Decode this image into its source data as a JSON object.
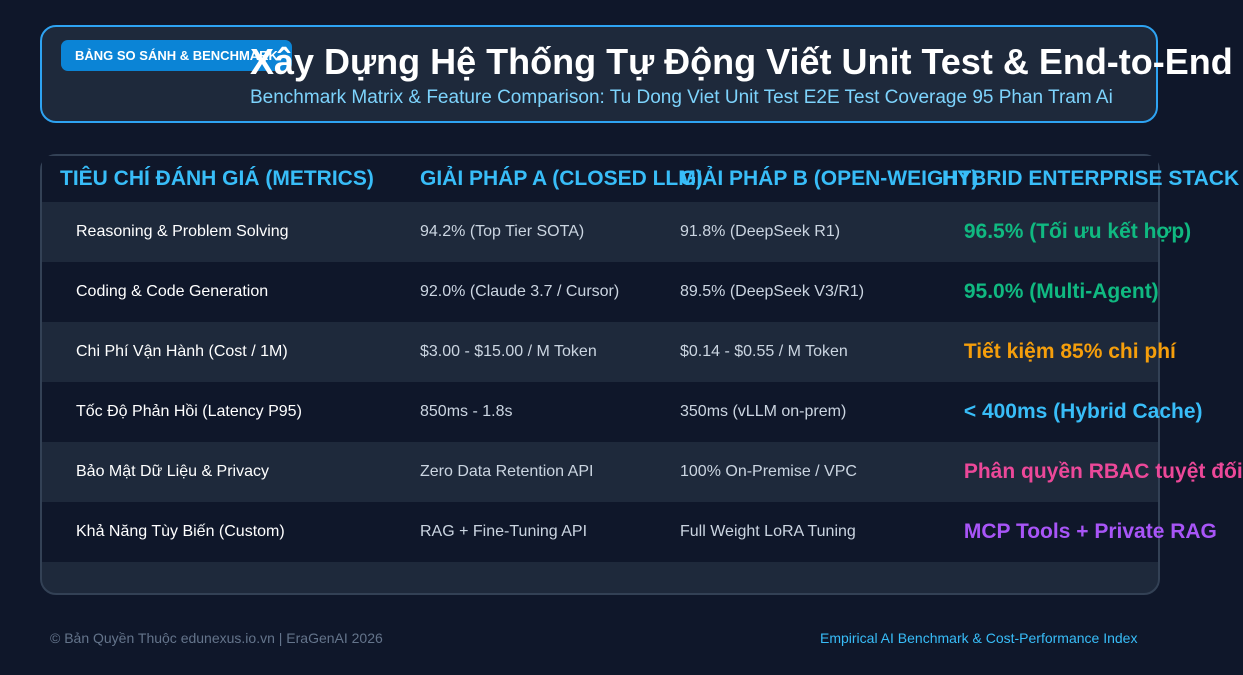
{
  "header": {
    "badge": "BẢNG SO SÁNH & BENCHMARK",
    "title": "Xây Dựng Hệ Thống Tự Động Viết Unit Test & End-to-End",
    "subtitle": "Benchmark Matrix & Feature Comparison: Tu Dong Viet Unit Test E2E Test Coverage 95 Phan Tram Ai"
  },
  "table": {
    "headers": [
      "TIÊU CHÍ ĐÁNH GIÁ (METRICS)",
      "GIẢI PHÁP A (CLOSED LLM)",
      "GIẢI PHÁP B (OPEN-WEIGHT)",
      "HYBRID ENTERPRISE STACK"
    ],
    "rows": [
      {
        "icon": "",
        "metric": "Reasoning & Problem Solving",
        "a": "94.2% (Top Tier SOTA)",
        "b": "91.8% (DeepSeek R1)",
        "hybrid": "96.5% (Tối ưu kết hợp)",
        "hybrid_color": "#10b981"
      },
      {
        "icon": "",
        "metric": "Coding & Code Generation",
        "a": "92.0% (Claude 3.7 / Cursor)",
        "b": "89.5% (DeepSeek V3/R1)",
        "hybrid": "95.0% (Multi-Agent)",
        "hybrid_color": "#10b981"
      },
      {
        "icon": "",
        "metric": "Chi Phí Vận Hành (Cost / 1M)",
        "a": "$3.00 - $15.00 / M Token",
        "b": "$0.14 - $0.55 / M Token",
        "hybrid": "Tiết kiệm 85% chi phí",
        "hybrid_color": "#f59e0b"
      },
      {
        "icon": "",
        "metric": "Tốc Độ Phản Hồi (Latency P95)",
        "a": "850ms - 1.8s",
        "b": "350ms (vLLM on-prem)",
        "hybrid": "< 400ms (Hybrid Cache)",
        "hybrid_color": "#38bdf8"
      },
      {
        "icon": "",
        "metric": "Bảo Mật Dữ Liệu & Privacy",
        "a": "Zero Data Retention API",
        "b": "100% On-Premise / VPC",
        "hybrid": "Phân quyền RBAC tuyệt đối",
        "hybrid_color": "#ec4899"
      },
      {
        "icon": "",
        "metric": "Khả Năng Tùy Biến (Custom)",
        "a": "RAG + Fine-Tuning API",
        "b": "Full Weight LoRA Tuning",
        "hybrid": "MCP Tools + Private RAG",
        "hybrid_color": "#a855f7"
      }
    ]
  },
  "footer": {
    "left": "© Bản Quyền Thuộc edunexus.io.vn | EraGenAI 2026",
    "right": "Empirical AI Benchmark & Cost-Performance Index"
  }
}
